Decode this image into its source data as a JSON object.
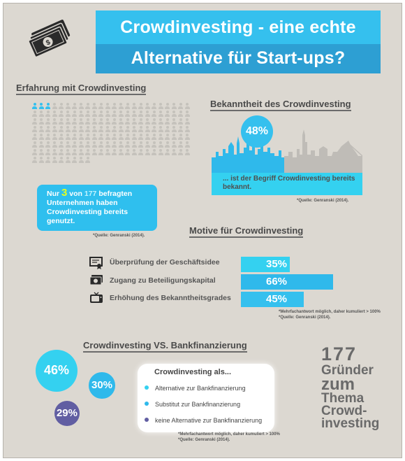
{
  "title": {
    "line1": "Crowdinvesting - eine echte",
    "line2": "Alternative für Start-ups?"
  },
  "icons": {
    "header": "money-stack-icon",
    "motive": [
      "certificate-icon",
      "money-icon",
      "tv-icon"
    ]
  },
  "colors": {
    "blue_light": "#35c0ee",
    "blue_dark": "#2d9fd3",
    "cyan": "#34d1f0",
    "purple": "#615ea2",
    "yellow": "#e4ff1e"
  },
  "erfahrung": {
    "title": "Erfahrung mit Crowdinvesting",
    "box_prefix": "Nur",
    "box_num": "3",
    "box_mid": "von",
    "box_total": "177",
    "box_rest": "befragten Unternehmen haben Crowdinvesting bereits genutzt.",
    "source": "*Quelle: Genranski (2014).",
    "people_highlight": 3,
    "people_total": 177
  },
  "bekanntheit": {
    "title": "Bekanntheit des Crowdinvesting",
    "percent": "48%",
    "text": "... ist der Begriff Crowdinvesting bereits bekannt.",
    "source": "*Quelle: Genranski (2014)."
  },
  "motive": {
    "title": "Motive für Crowdinvesting",
    "note1": "*Mehrfachantwort möglich, daher kumuliert > 100%",
    "note2": "*Quelle: Genranski (2014).",
    "items": [
      {
        "label": "Überprüfung der Geschäftsidee",
        "value": 35,
        "display": "35%",
        "color": "#34d1f0"
      },
      {
        "label": "Zugang zu Beteiligungskapital",
        "value": 66,
        "display": "66%",
        "color": "#2fb9eb"
      },
      {
        "label": "Erhöhung des Bekanntheitsgrades",
        "value": 45,
        "display": "45%",
        "color": "#35c0ee"
      }
    ]
  },
  "vergleich": {
    "title": "Crowdinvesting VS. Bankfinanzierung",
    "legend_head": "Crowdinvesting als...",
    "note1": "*Mehrfachantwort möglich, daher kumuliert > 100%",
    "note2": "*Quelle: Genranski (2014).",
    "items": [
      {
        "label": "Alternative zur Bankfinanzierung",
        "value": 46,
        "display": "46%",
        "color": "#34d1f0"
      },
      {
        "label": "Substitut zur Bankfinanzierung",
        "value": 30,
        "display": "30%",
        "color": "#2fb9eb"
      },
      {
        "label": "keine Alternative zur Bankfinanzierung",
        "value": 29,
        "display": "29%",
        "color": "#615ea2"
      }
    ]
  },
  "stat": {
    "number": "177",
    "lines": [
      "Gründer",
      "zum",
      "Thema",
      "Crowd-",
      "investing"
    ]
  },
  "chart_data": [
    {
      "type": "bar",
      "title": "Motive für Crowdinvesting",
      "categories": [
        "Überprüfung der Geschäftsidee",
        "Zugang zu Beteiligungskapital",
        "Erhöhung des Bekanntheitsgrades"
      ],
      "values": [
        35,
        66,
        45
      ],
      "xlim": [
        0,
        100
      ]
    },
    {
      "type": "bar",
      "title": "Crowdinvesting VS. Bankfinanzierung",
      "categories": [
        "Alternative zur Bankfinanzierung",
        "Substitut zur Bankfinanzierung",
        "keine Alternative zur Bankfinanzierung"
      ],
      "values": [
        46,
        30,
        29
      ]
    }
  ]
}
